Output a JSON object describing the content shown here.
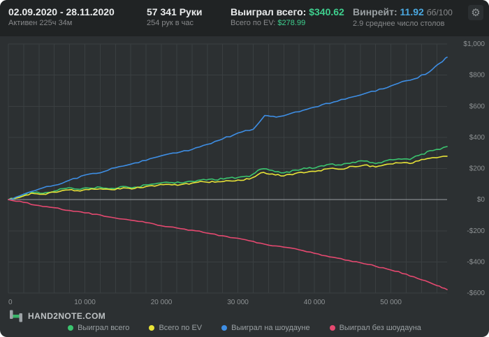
{
  "header": {
    "date_range": "02.09.2020 - 28.11.2020",
    "active_time": "Активен 225ч 34м",
    "hands": "57 341 Руки",
    "hands_per_hour": "254 рук в час",
    "won_total_label": "Выиграл всего:",
    "won_total_value": "$340.62",
    "ev_total_label": "Всего по EV:",
    "ev_total_value": "$278.99",
    "winrate_label": "Винрейт:",
    "winrate_value": "11.92",
    "winrate_unit": "бб/100",
    "avg_tables": "2.9 среднее число столов"
  },
  "icons": {
    "gear": "⚙"
  },
  "logo": {
    "text": "HAND2NOTE.COM"
  },
  "colors": {
    "background": "#2c3032",
    "header_background": "#202324",
    "grid": "#3a3f41",
    "zero_line": "#9ba1a4",
    "axis_text": "#8e9294",
    "green": "#3bc46f",
    "yellow": "#e8e337",
    "blue": "#3e8ee4",
    "pink": "#e54970"
  },
  "chart_data": {
    "type": "line",
    "title": "",
    "xlabel": "",
    "ylabel": "",
    "x_range": [
      0,
      57341
    ],
    "y_range": [
      -600,
      1000
    ],
    "grid": true,
    "grid_step_x": 2000,
    "legend_position": "bottom",
    "plot": {
      "x0": 12,
      "x1": 640,
      "y0": 11,
      "y1": 368,
      "label_x": 694,
      "label_y_offset": 3,
      "xlabel_y": 384
    },
    "x_ticks": [
      {
        "v": 0,
        "label": "0"
      },
      {
        "v": 10000,
        "label": "10 000"
      },
      {
        "v": 20000,
        "label": "20 000"
      },
      {
        "v": 30000,
        "label": "30 000"
      },
      {
        "v": 40000,
        "label": "40 000"
      },
      {
        "v": 50000,
        "label": "50 000"
      }
    ],
    "y_ticks": [
      {
        "v": 1000,
        "label": "$1,000"
      },
      {
        "v": 800,
        "label": "$800"
      },
      {
        "v": 600,
        "label": "$600"
      },
      {
        "v": 400,
        "label": "$400"
      },
      {
        "v": 200,
        "label": "$200"
      },
      {
        "v": 0,
        "label": "$0"
      },
      {
        "v": -200,
        "label": "-$200"
      },
      {
        "v": -400,
        "label": "-$400"
      },
      {
        "v": -600,
        "label": "-$600"
      }
    ],
    "series": [
      {
        "name": "Выиграл всего",
        "color": "#3bc46f",
        "final_value": 340.62,
        "jitter": 6,
        "points": [
          [
            0,
            0
          ],
          [
            1500,
            18
          ],
          [
            3000,
            48
          ],
          [
            4500,
            40
          ],
          [
            6000,
            55
          ],
          [
            7500,
            72
          ],
          [
            9000,
            68
          ],
          [
            10500,
            74
          ],
          [
            12000,
            80
          ],
          [
            13500,
            72
          ],
          [
            15000,
            85
          ],
          [
            16500,
            80
          ],
          [
            18000,
            95
          ],
          [
            19500,
            105
          ],
          [
            21000,
            110
          ],
          [
            22500,
            108
          ],
          [
            24000,
            118
          ],
          [
            25500,
            130
          ],
          [
            27000,
            126
          ],
          [
            28500,
            138
          ],
          [
            30000,
            142
          ],
          [
            31500,
            148
          ],
          [
            33000,
            196
          ],
          [
            34500,
            188
          ],
          [
            36000,
            172
          ],
          [
            37500,
            190
          ],
          [
            39000,
            200
          ],
          [
            40500,
            212
          ],
          [
            42000,
            228
          ],
          [
            43500,
            222
          ],
          [
            45000,
            240
          ],
          [
            46500,
            248
          ],
          [
            48000,
            232
          ],
          [
            49500,
            252
          ],
          [
            51000,
            262
          ],
          [
            52500,
            258
          ],
          [
            54000,
            292
          ],
          [
            55500,
            315
          ],
          [
            57341,
            341
          ]
        ]
      },
      {
        "name": "Всего по EV",
        "color": "#e8e337",
        "final_value": 278.99,
        "jitter": 5,
        "points": [
          [
            0,
            0
          ],
          [
            1500,
            15
          ],
          [
            3000,
            42
          ],
          [
            4500,
            35
          ],
          [
            6000,
            48
          ],
          [
            7500,
            62
          ],
          [
            9000,
            58
          ],
          [
            10500,
            64
          ],
          [
            12000,
            70
          ],
          [
            13500,
            64
          ],
          [
            15000,
            76
          ],
          [
            16500,
            72
          ],
          [
            18000,
            85
          ],
          [
            19500,
            92
          ],
          [
            21000,
            98
          ],
          [
            22500,
            96
          ],
          [
            24000,
            106
          ],
          [
            25500,
            115
          ],
          [
            27000,
            112
          ],
          [
            28500,
            122
          ],
          [
            30000,
            126
          ],
          [
            31500,
            132
          ],
          [
            33000,
            172
          ],
          [
            34500,
            165
          ],
          [
            36000,
            152
          ],
          [
            37500,
            168
          ],
          [
            39000,
            176
          ],
          [
            40500,
            186
          ],
          [
            42000,
            200
          ],
          [
            43500,
            196
          ],
          [
            45000,
            214
          ],
          [
            46500,
            222
          ],
          [
            48000,
            210
          ],
          [
            49500,
            228
          ],
          [
            51000,
            236
          ],
          [
            52500,
            232
          ],
          [
            54000,
            258
          ],
          [
            55500,
            270
          ],
          [
            57341,
            279
          ]
        ]
      },
      {
        "name": "Выиграл на шоудауне",
        "color": "#3e8ee4",
        "final_value": 915,
        "jitter": 5,
        "points": [
          [
            0,
            0
          ],
          [
            2000,
            35
          ],
          [
            4000,
            68
          ],
          [
            6000,
            92
          ],
          [
            8000,
            125
          ],
          [
            10000,
            158
          ],
          [
            12000,
            172
          ],
          [
            14000,
            205
          ],
          [
            16000,
            228
          ],
          [
            18000,
            252
          ],
          [
            20000,
            282
          ],
          [
            22000,
            300
          ],
          [
            24000,
            322
          ],
          [
            26000,
            355
          ],
          [
            28000,
            390
          ],
          [
            30000,
            428
          ],
          [
            32000,
            452
          ],
          [
            33500,
            540
          ],
          [
            35000,
            530
          ],
          [
            37000,
            555
          ],
          [
            39000,
            580
          ],
          [
            41000,
            610
          ],
          [
            43000,
            632
          ],
          [
            45000,
            660
          ],
          [
            47000,
            688
          ],
          [
            49000,
            712
          ],
          [
            51000,
            748
          ],
          [
            53000,
            775
          ],
          [
            55000,
            820
          ],
          [
            56500,
            880
          ],
          [
            57341,
            915
          ]
        ]
      },
      {
        "name": "Выиграл без шоудауна",
        "color": "#e54970",
        "final_value": -578,
        "jitter": 4,
        "points": [
          [
            0,
            0
          ],
          [
            2000,
            -18
          ],
          [
            4000,
            -38
          ],
          [
            6000,
            -52
          ],
          [
            8000,
            -70
          ],
          [
            10000,
            -85
          ],
          [
            12000,
            -98
          ],
          [
            14000,
            -118
          ],
          [
            16000,
            -132
          ],
          [
            18000,
            -148
          ],
          [
            20000,
            -168
          ],
          [
            22000,
            -182
          ],
          [
            24000,
            -196
          ],
          [
            26000,
            -215
          ],
          [
            28000,
            -232
          ],
          [
            30000,
            -248
          ],
          [
            32000,
            -268
          ],
          [
            34000,
            -292
          ],
          [
            36000,
            -305
          ],
          [
            38000,
            -322
          ],
          [
            40000,
            -345
          ],
          [
            42000,
            -368
          ],
          [
            44000,
            -388
          ],
          [
            46000,
            -405
          ],
          [
            48000,
            -428
          ],
          [
            50000,
            -452
          ],
          [
            52000,
            -478
          ],
          [
            54000,
            -515
          ],
          [
            56000,
            -552
          ],
          [
            57341,
            -578
          ]
        ]
      }
    ]
  }
}
